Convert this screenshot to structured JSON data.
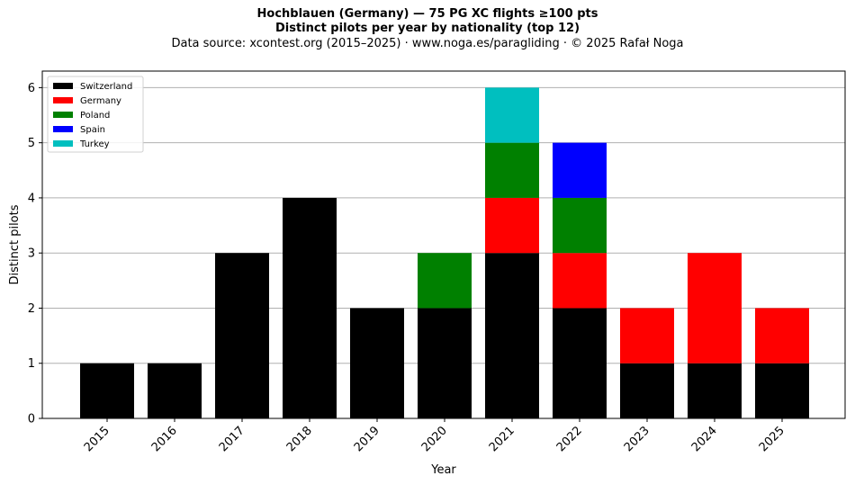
{
  "chart_data": {
    "type": "bar",
    "stacked": true,
    "title": "Hochblauen (Germany)  —  75 PG XC flights ≥100 pts",
    "subtitle": "Distinct pilots per year by nationality (top 12)",
    "source_note": "Data source: xcontest.org (2015–2025)  ·  www.noga.es/paragliding  ·  © 2025 Rafał Noga",
    "xlabel": "Year",
    "ylabel": "Distinct pilots",
    "categories": [
      "2015",
      "2016",
      "2017",
      "2018",
      "2019",
      "2020",
      "2021",
      "2022",
      "2023",
      "2024",
      "2025"
    ],
    "ylim": [
      0,
      6.3
    ],
    "yticks": [
      0,
      1,
      2,
      3,
      4,
      5,
      6
    ],
    "grid": "y",
    "legend_position": "top-left",
    "series": [
      {
        "name": "Switzerland",
        "color": "#000000",
        "values": [
          1,
          1,
          3,
          4,
          2,
          2,
          3,
          2,
          1,
          1,
          1
        ]
      },
      {
        "name": "Germany",
        "color": "#ff0000",
        "values": [
          0,
          0,
          0,
          0,
          0,
          0,
          1,
          1,
          1,
          2,
          1
        ]
      },
      {
        "name": "Poland",
        "color": "#008000",
        "values": [
          0,
          0,
          0,
          0,
          0,
          1,
          1,
          1,
          0,
          0,
          0
        ]
      },
      {
        "name": "Spain",
        "color": "#0000ff",
        "values": [
          0,
          0,
          0,
          0,
          0,
          0,
          0,
          1,
          0,
          0,
          0
        ]
      },
      {
        "name": "Turkey",
        "color": "#00bfbf",
        "values": [
          0,
          0,
          0,
          0,
          0,
          0,
          1,
          0,
          0,
          0,
          0
        ]
      }
    ]
  }
}
